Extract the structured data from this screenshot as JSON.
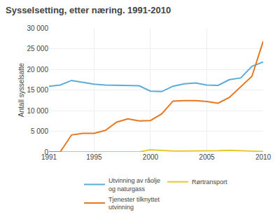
{
  "chart_data": {
    "type": "line",
    "title": "Sysselsetting, etter næring. 1991-2010",
    "y_label": "Antall sysselsatte",
    "x": [
      1991,
      1992,
      1993,
      1994,
      1995,
      1996,
      1997,
      1998,
      1999,
      2000,
      2001,
      2002,
      2003,
      2004,
      2005,
      2006,
      2007,
      2008,
      2009,
      2010
    ],
    "series": [
      {
        "name": "Utvinning av råolje\nog naturgass",
        "color": "#5bacd8",
        "values": [
          15900,
          16200,
          17300,
          16900,
          16400,
          16200,
          16100,
          16100,
          16000,
          14700,
          14600,
          15900,
          16500,
          16700,
          16200,
          16100,
          17500,
          17900,
          20700,
          21800
        ]
      },
      {
        "name": "Rørtransport",
        "color": "#e8c832",
        "values": [
          0,
          0,
          0,
          0,
          0,
          0,
          0,
          0,
          0,
          500,
          300,
          200,
          200,
          200,
          300,
          300,
          400,
          300,
          200,
          100
        ]
      },
      {
        "name": "Tjenester tilknyttet\nutvinning",
        "color": "#e87820",
        "values": [
          0,
          0,
          4100,
          4500,
          4500,
          5200,
          7200,
          8000,
          7500,
          7600,
          9200,
          12300,
          12400,
          12400,
          12200,
          11800,
          13200,
          15800,
          18300,
          26800
        ]
      }
    ],
    "xlim": [
      1991,
      2010
    ],
    "xticks": [
      1991,
      1995,
      2000,
      2005,
      2010
    ],
    "ylim": [
      0,
      30000
    ],
    "yticks": [
      0,
      {
        "value": 5000,
        "label": "5 000"
      },
      {
        "value": 10000,
        "label": "10 000"
      },
      {
        "value": 15000,
        "label": "15 000"
      },
      {
        "value": 20000,
        "label": "20 000"
      },
      {
        "value": 25000,
        "label": "25 000"
      },
      {
        "value": 30000,
        "label": "30 000"
      }
    ],
    "grid": true,
    "legend": "bottom"
  }
}
